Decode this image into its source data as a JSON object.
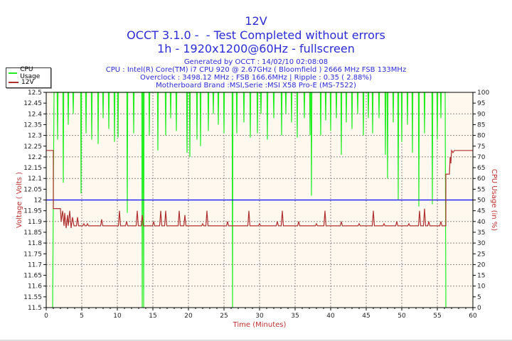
{
  "header": {
    "title": "12V",
    "line2": "OCCT 3.1.0 -  - Test Completed without errors",
    "line3": "1h - 1920x1200@60Hz - fullscreen",
    "info": [
      "Generated by OCCT : 14/02/10 02:08:08",
      "CPU : Intel(R) Core(TM) i7 CPU 920 @ 2.67GHz ( Bloomfield ) 2666 MHz FSB 133MHz",
      "Overclock : 3498.12 MHz ; FSB 166.6MHz | Ripple : 0.35 ( 2.88%)",
      "Motherboard Brand :MSI,Serie :MSI X58 Pro-E (MS-7522)"
    ]
  },
  "chart_data": {
    "type": "line",
    "xlabel": "Time (Minutes)",
    "ylabel": "Voltage ( Volts )",
    "y2label": "CPU Usage (in %)",
    "xlim": [
      0,
      60
    ],
    "ylim": [
      11.5,
      12.5
    ],
    "y2lim": [
      0,
      100
    ],
    "xticks": [
      "0",
      "5",
      "10",
      "15",
      "20",
      "25",
      "30",
      "35",
      "40",
      "45",
      "50",
      "55",
      "60"
    ],
    "yticks": [
      "11.5",
      "11.55",
      "11.6",
      "11.65",
      "11.7",
      "11.75",
      "11.8",
      "11.85",
      "11.9",
      "11.95",
      "12",
      "12.05",
      "12.1",
      "12.15",
      "12.2",
      "12.25",
      "12.3",
      "12.35",
      "12.4",
      "12.45",
      "12.5"
    ],
    "y2ticks": [
      "0",
      "5",
      "10",
      "15",
      "20",
      "25",
      "30",
      "35",
      "40",
      "45",
      "50",
      "55",
      "60",
      "65",
      "70",
      "75",
      "80",
      "85",
      "90",
      "95",
      "100"
    ],
    "grid": true,
    "legend": "top-left",
    "reference_line": {
      "value": 12,
      "color": "#0000ff"
    },
    "colors": {
      "cpu": "#22ee22",
      "v12": "#b03030",
      "background": "#fff8ee"
    },
    "series": [
      {
        "name": "CPU Usage",
        "axis": "right",
        "start": 0.9,
        "end": 56.2,
        "base": 100,
        "dips": [
          [
            1.6,
            78
          ],
          [
            2.4,
            58
          ],
          [
            3.1,
            85
          ],
          [
            3.8,
            90
          ],
          [
            4.9,
            53
          ],
          [
            5.6,
            81
          ],
          [
            6.4,
            78
          ],
          [
            7.3,
            76
          ],
          [
            8.0,
            88
          ],
          [
            8.8,
            83
          ],
          [
            9.6,
            77
          ],
          [
            10.1,
            79
          ],
          [
            11.4,
            44
          ],
          [
            12.3,
            81
          ],
          [
            13.5,
            0
          ],
          [
            13.7,
            0
          ],
          [
            14.5,
            80
          ],
          [
            15.7,
            73
          ],
          [
            16.8,
            80
          ],
          [
            17.5,
            88
          ],
          [
            18.3,
            82
          ],
          [
            19.8,
            72
          ],
          [
            20.2,
            70
          ],
          [
            21.2,
            78
          ],
          [
            21.7,
            75
          ],
          [
            22.8,
            82
          ],
          [
            23.5,
            90
          ],
          [
            24.2,
            85
          ],
          [
            25.0,
            81
          ],
          [
            26.2,
            0
          ],
          [
            26.8,
            81
          ],
          [
            27.8,
            86
          ],
          [
            28.7,
            79
          ],
          [
            29.7,
            81
          ],
          [
            30.2,
            90
          ],
          [
            31.1,
            78
          ],
          [
            32.0,
            88
          ],
          [
            33.1,
            80
          ],
          [
            33.7,
            90
          ],
          [
            34.5,
            86
          ],
          [
            35.3,
            79
          ],
          [
            36.3,
            88
          ],
          [
            37.1,
            80
          ],
          [
            37.3,
            52
          ],
          [
            38.6,
            80
          ],
          [
            39.3,
            87
          ],
          [
            40.0,
            82
          ],
          [
            40.8,
            88
          ],
          [
            41.5,
            71
          ],
          [
            42.2,
            86
          ],
          [
            43.0,
            83
          ],
          [
            43.8,
            90
          ],
          [
            44.6,
            80
          ],
          [
            45.3,
            88
          ],
          [
            45.9,
            81
          ],
          [
            46.8,
            88
          ],
          [
            47.7,
            71
          ],
          [
            48.0,
            60
          ],
          [
            48.8,
            86
          ],
          [
            49.5,
            50
          ],
          [
            50.0,
            77
          ],
          [
            50.8,
            85
          ],
          [
            51.5,
            72
          ],
          [
            52.4,
            47
          ],
          [
            53.2,
            81
          ],
          [
            54.3,
            48
          ],
          [
            55.0,
            78
          ],
          [
            55.5,
            88
          ]
        ]
      },
      {
        "name": "12V",
        "axis": "left",
        "base": 11.88,
        "points": [
          [
            0,
            12.23
          ],
          [
            1.0,
            12.23
          ],
          [
            1.0,
            11.96
          ],
          [
            2.0,
            11.96
          ],
          [
            2.1,
            11.9
          ],
          [
            2.3,
            11.95
          ],
          [
            2.5,
            11.88
          ],
          [
            2.6,
            11.94
          ],
          [
            2.8,
            11.87
          ],
          [
            3.0,
            11.93
          ],
          [
            3.1,
            11.88
          ],
          [
            3.3,
            11.95
          ],
          [
            3.5,
            11.87
          ],
          [
            3.7,
            11.92
          ],
          [
            3.9,
            11.88
          ]
        ],
        "spikes": [
          [
            4.4,
            11.92
          ],
          [
            5.3,
            11.89
          ],
          [
            5.8,
            11.89
          ],
          [
            7.8,
            11.91
          ],
          [
            10.3,
            11.95
          ],
          [
            11.3,
            11.9
          ],
          [
            12.8,
            11.95
          ],
          [
            13.5,
            11.93
          ],
          [
            15.1,
            11.9
          ],
          [
            16.1,
            11.95
          ],
          [
            16.8,
            11.95
          ],
          [
            18.7,
            11.95
          ],
          [
            19.5,
            11.93
          ],
          [
            22.0,
            11.89
          ],
          [
            22.6,
            11.95
          ],
          [
            25.5,
            11.9
          ],
          [
            28.5,
            11.95
          ],
          [
            30.0,
            11.89
          ],
          [
            32.5,
            11.9
          ],
          [
            33.2,
            11.95
          ],
          [
            35.5,
            11.9
          ],
          [
            38.0,
            11.89
          ],
          [
            39.2,
            11.95
          ],
          [
            41.5,
            11.9
          ],
          [
            44.0,
            11.89
          ],
          [
            46.0,
            11.95
          ],
          [
            47.5,
            11.89
          ],
          [
            49.3,
            11.9
          ],
          [
            51.0,
            11.89
          ],
          [
            52.5,
            11.95
          ],
          [
            53.2,
            11.96
          ],
          [
            53.8,
            11.9
          ],
          [
            55.5,
            11.9
          ]
        ],
        "tail": [
          [
            56.2,
            11.88
          ],
          [
            56.2,
            12.12
          ],
          [
            56.7,
            12.12
          ],
          [
            56.8,
            12.2
          ],
          [
            56.9,
            12.17
          ],
          [
            57.0,
            12.23
          ],
          [
            57.2,
            12.22
          ],
          [
            57.4,
            12.23
          ],
          [
            60,
            12.23
          ]
        ]
      }
    ]
  }
}
